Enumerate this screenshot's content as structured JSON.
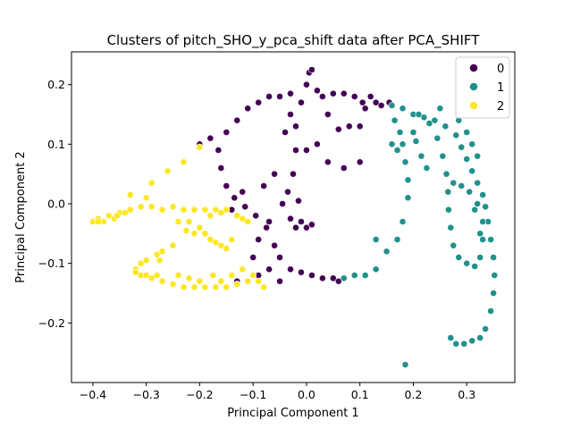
{
  "chart_data": {
    "type": "scatter",
    "title": "Clusters of pitch_SHO_y_pca_shift data after PCA_SHIFT",
    "xlabel": "Principal Component 1",
    "ylabel": "Principal Component 2",
    "xlim": [
      -0.44,
      0.39
    ],
    "ylim": [
      -0.3,
      0.255
    ],
    "xticks": [
      -0.4,
      -0.3,
      -0.2,
      -0.1,
      0.0,
      0.1,
      0.2,
      0.3
    ],
    "xtick_labels": [
      "−0.4",
      "−0.3",
      "−0.2",
      "−0.1",
      "0.0",
      "0.1",
      "0.2",
      "0.3"
    ],
    "yticks": [
      -0.2,
      -0.1,
      0.0,
      0.1,
      0.2
    ],
    "ytick_labels": [
      "−0.2",
      "−0.1",
      "0.0",
      "0.1",
      "0.2"
    ],
    "grid": false,
    "legend_position": "top-right",
    "series": [
      {
        "name": "0",
        "color": "#440154",
        "points": [
          [
            -0.03,
            0.185
          ],
          [
            -0.05,
            0.18
          ],
          [
            -0.07,
            0.18
          ],
          [
            -0.09,
            0.17
          ],
          [
            -0.11,
            0.16
          ],
          [
            -0.13,
            0.14
          ],
          [
            -0.15,
            0.12
          ],
          [
            -0.165,
            0.09
          ],
          [
            -0.16,
            0.06
          ],
          [
            -0.15,
            0.03
          ],
          [
            -0.135,
            0.01
          ],
          [
            -0.115,
            -0.005
          ],
          [
            -0.095,
            -0.02
          ],
          [
            -0.075,
            -0.04
          ],
          [
            -0.06,
            -0.07
          ],
          [
            -0.05,
            -0.09
          ],
          [
            -0.03,
            -0.11
          ],
          [
            -0.01,
            -0.115
          ],
          [
            0.01,
            -0.12
          ],
          [
            0.03,
            -0.125
          ],
          [
            0.05,
            -0.125
          ],
          [
            -0.1,
            -0.09
          ],
          [
            -0.09,
            -0.06
          ],
          [
            -0.07,
            -0.03
          ],
          [
            -0.045,
            0.0
          ],
          [
            -0.035,
            0.02
          ],
          [
            -0.025,
            0.05
          ],
          [
            -0.02,
            0.09
          ],
          [
            -0.02,
            0.13
          ],
          [
            -0.01,
            0.17
          ],
          [
            0.0,
            0.2
          ],
          [
            0.005,
            0.22
          ],
          [
            0.01,
            0.225
          ],
          [
            0.02,
            0.19
          ],
          [
            0.04,
            0.15
          ],
          [
            0.06,
            0.125
          ],
          [
            0.08,
            0.13
          ],
          [
            0.1,
            0.13
          ],
          [
            0.11,
            0.16
          ],
          [
            0.12,
            0.18
          ],
          [
            0.13,
            0.17
          ],
          [
            0.14,
            0.165
          ],
          [
            0.155,
            0.17
          ],
          [
            0.03,
            0.18
          ],
          [
            0.05,
            0.185
          ],
          [
            0.07,
            0.185
          ],
          [
            0.09,
            0.18
          ],
          [
            0.105,
            0.17
          ],
          [
            -0.02,
            -0.04
          ],
          [
            0.0,
            -0.04
          ],
          [
            0.01,
            -0.035
          ],
          [
            -0.01,
            -0.03
          ],
          [
            -0.03,
            -0.025
          ],
          [
            0.02,
            0.1
          ],
          [
            0.04,
            0.07
          ],
          [
            0.07,
            0.06
          ],
          [
            0.1,
            0.07
          ],
          [
            -0.06,
            0.05
          ],
          [
            -0.08,
            0.03
          ],
          [
            -0.12,
            0.02
          ],
          [
            -0.14,
            -0.01
          ],
          [
            -0.18,
            0.11
          ],
          [
            -0.2,
            0.1
          ],
          [
            -0.13,
            -0.13
          ],
          [
            -0.09,
            -0.12
          ],
          [
            -0.07,
            -0.11
          ],
          [
            -0.05,
            -0.13
          ],
          [
            0.06,
            -0.13
          ],
          [
            -0.015,
            0.005
          ],
          [
            -0.04,
            0.12
          ],
          [
            -0.03,
            0.15
          ],
          [
            0.0,
            0.09
          ]
        ]
      },
      {
        "name": "1",
        "color": "#21918c",
        "points": [
          [
            0.16,
            0.165
          ],
          [
            0.18,
            0.16
          ],
          [
            0.2,
            0.15
          ],
          [
            0.22,
            0.145
          ],
          [
            0.24,
            0.14
          ],
          [
            0.26,
            0.13
          ],
          [
            0.28,
            0.115
          ],
          [
            0.29,
            0.095
          ],
          [
            0.3,
            0.075
          ],
          [
            0.31,
            0.055
          ],
          [
            0.32,
            0.035
          ],
          [
            0.33,
            0.015
          ],
          [
            0.335,
            -0.005
          ],
          [
            0.34,
            -0.03
          ],
          [
            0.345,
            -0.06
          ],
          [
            0.35,
            -0.09
          ],
          [
            0.352,
            -0.12
          ],
          [
            0.35,
            -0.15
          ],
          [
            0.345,
            -0.18
          ],
          [
            0.335,
            -0.21
          ],
          [
            0.325,
            -0.225
          ],
          [
            0.31,
            -0.23
          ],
          [
            0.295,
            -0.235
          ],
          [
            0.28,
            -0.235
          ],
          [
            0.27,
            -0.225
          ],
          [
            0.165,
            0.14
          ],
          [
            0.175,
            0.12
          ],
          [
            0.18,
            0.1
          ],
          [
            0.185,
            0.07
          ],
          [
            0.19,
            0.04
          ],
          [
            0.19,
            0.01
          ],
          [
            0.18,
            -0.03
          ],
          [
            0.17,
            -0.06
          ],
          [
            0.15,
            -0.08
          ],
          [
            0.13,
            -0.11
          ],
          [
            0.11,
            -0.12
          ],
          [
            0.09,
            -0.12
          ],
          [
            0.07,
            -0.125
          ],
          [
            0.21,
            0.15
          ],
          [
            0.23,
            0.135
          ],
          [
            0.245,
            0.11
          ],
          [
            0.255,
            0.08
          ],
          [
            0.262,
            0.05
          ],
          [
            0.265,
            0.02
          ],
          [
            0.266,
            -0.01
          ],
          [
            0.27,
            -0.04
          ],
          [
            0.275,
            -0.07
          ],
          [
            0.285,
            -0.09
          ],
          [
            0.3,
            -0.1
          ],
          [
            0.315,
            -0.105
          ],
          [
            0.325,
            -0.09
          ],
          [
            0.33,
            -0.06
          ],
          [
            0.33,
            -0.03
          ],
          [
            0.32,
            0.0
          ],
          [
            0.305,
            0.02
          ],
          [
            0.29,
            0.03
          ],
          [
            0.275,
            0.035
          ],
          [
            0.205,
            0.105
          ],
          [
            0.215,
            0.08
          ],
          [
            0.225,
            0.06
          ],
          [
            0.315,
            -0.01
          ],
          [
            0.325,
            -0.05
          ],
          [
            0.185,
            -0.27
          ],
          [
            0.13,
            -0.06
          ],
          [
            0.17,
            0.09
          ],
          [
            0.2,
            0.12
          ],
          [
            0.16,
            0.1
          ],
          [
            0.25,
            0.16
          ],
          [
            0.285,
            0.14
          ],
          [
            0.3,
            0.12
          ],
          [
            0.31,
            0.1
          ],
          [
            0.32,
            0.08
          ]
        ]
      },
      {
        "name": "2",
        "color": "#fde725",
        "points": [
          [
            -0.4,
            -0.03
          ],
          [
            -0.39,
            -0.025
          ],
          [
            -0.37,
            -0.02
          ],
          [
            -0.35,
            -0.015
          ],
          [
            -0.33,
            -0.01
          ],
          [
            -0.31,
            -0.005
          ],
          [
            -0.29,
            -0.005
          ],
          [
            -0.27,
            -0.01
          ],
          [
            -0.25,
            -0.005
          ],
          [
            -0.23,
            -0.01
          ],
          [
            -0.21,
            -0.01
          ],
          [
            -0.19,
            -0.01
          ],
          [
            -0.17,
            -0.01
          ],
          [
            -0.16,
            -0.015
          ],
          [
            -0.2,
            -0.04
          ],
          [
            -0.19,
            -0.05
          ],
          [
            -0.18,
            -0.06
          ],
          [
            -0.17,
            -0.065
          ],
          [
            -0.16,
            -0.07
          ],
          [
            -0.15,
            -0.075
          ],
          [
            -0.32,
            -0.11
          ],
          [
            -0.31,
            -0.1
          ],
          [
            -0.3,
            -0.095
          ],
          [
            -0.28,
            -0.085
          ],
          [
            -0.27,
            -0.08
          ],
          [
            -0.25,
            -0.07
          ],
          [
            -0.31,
            -0.12
          ],
          [
            -0.29,
            -0.125
          ],
          [
            -0.27,
            -0.13
          ],
          [
            -0.25,
            -0.135
          ],
          [
            -0.23,
            -0.14
          ],
          [
            -0.21,
            -0.14
          ],
          [
            -0.19,
            -0.14
          ],
          [
            -0.17,
            -0.14
          ],
          [
            -0.15,
            -0.14
          ],
          [
            -0.13,
            -0.135
          ],
          [
            -0.11,
            -0.13
          ],
          [
            -0.09,
            -0.13
          ],
          [
            -0.08,
            -0.14
          ],
          [
            -0.29,
            0.035
          ],
          [
            -0.26,
            0.055
          ],
          [
            -0.23,
            0.07
          ],
          [
            -0.2,
            0.095
          ],
          [
            -0.33,
            0.015
          ],
          [
            -0.3,
            0.01
          ],
          [
            -0.38,
            -0.03
          ],
          [
            -0.36,
            -0.025
          ],
          [
            -0.22,
            -0.03
          ],
          [
            -0.21,
            -0.05
          ],
          [
            -0.14,
            -0.06
          ],
          [
            -0.12,
            -0.11
          ],
          [
            -0.1,
            -0.12
          ],
          [
            -0.175,
            -0.12
          ],
          [
            -0.16,
            -0.13
          ],
          [
            -0.14,
            -0.12
          ],
          [
            -0.2,
            -0.13
          ],
          [
            -0.22,
            -0.125
          ],
          [
            -0.24,
            -0.12
          ],
          [
            -0.28,
            -0.12
          ],
          [
            -0.3,
            -0.12
          ],
          [
            -0.32,
            -0.115
          ],
          [
            -0.18,
            -0.02
          ],
          [
            -0.15,
            -0.01
          ],
          [
            -0.13,
            -0.02
          ],
          [
            -0.12,
            -0.025
          ],
          [
            -0.11,
            -0.03
          ],
          [
            -0.24,
            -0.03
          ],
          [
            -0.225,
            -0.045
          ],
          [
            -0.34,
            -0.015
          ],
          [
            -0.39,
            -0.03
          ],
          [
            -0.355,
            -0.02
          ],
          [
            -0.275,
            -0.095
          ]
        ]
      }
    ]
  }
}
